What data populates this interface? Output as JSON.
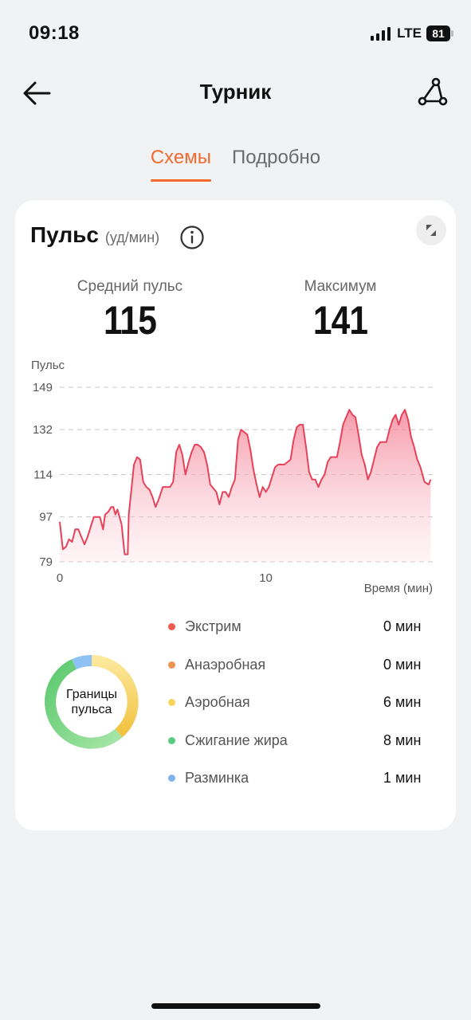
{
  "status": {
    "time": "09:18",
    "network": "LTE",
    "battery": "81"
  },
  "header": {
    "title": "Турник"
  },
  "tabs": [
    {
      "label": "Схемы",
      "active": true
    },
    {
      "label": "Подробно",
      "active": false
    }
  ],
  "card": {
    "title": "Пульс",
    "unit": "(уд/мин)",
    "stats": {
      "avg_label": "Средний пульс",
      "avg_value": "115",
      "max_label": "Максимум",
      "max_value": "141"
    }
  },
  "chart_data": {
    "type": "area",
    "ylabel": "Пульс",
    "xlabel": "Время (мин)",
    "yticks": [
      149,
      132,
      114,
      97,
      79
    ],
    "xticks": [
      0,
      10
    ],
    "ylim": [
      79,
      149
    ],
    "xlim": [
      0,
      18.1
    ],
    "grid": true,
    "color": "#e8425a",
    "series": [
      {
        "points": [
          [
            0.0,
            95
          ],
          [
            0.15,
            84
          ],
          [
            0.3,
            85
          ],
          [
            0.45,
            88
          ],
          [
            0.6,
            87
          ],
          [
            0.75,
            92
          ],
          [
            0.9,
            92
          ],
          [
            1.05,
            89
          ],
          [
            1.2,
            86
          ],
          [
            1.35,
            89
          ],
          [
            1.5,
            93
          ],
          [
            1.65,
            97
          ],
          [
            1.8,
            97
          ],
          [
            1.95,
            97
          ],
          [
            2.1,
            92
          ],
          [
            2.2,
            98
          ],
          [
            2.35,
            99
          ],
          [
            2.5,
            101
          ],
          [
            2.6,
            101
          ],
          [
            2.7,
            98
          ],
          [
            2.8,
            100
          ],
          [
            3.0,
            94
          ],
          [
            3.15,
            82
          ],
          [
            3.3,
            82
          ],
          [
            3.35,
            98
          ],
          [
            3.45,
            106
          ],
          [
            3.6,
            118
          ],
          [
            3.75,
            121
          ],
          [
            3.9,
            120
          ],
          [
            4.05,
            111
          ],
          [
            4.2,
            109
          ],
          [
            4.35,
            108
          ],
          [
            4.5,
            105
          ],
          [
            4.65,
            101
          ],
          [
            4.8,
            104
          ],
          [
            5.0,
            109
          ],
          [
            5.2,
            109
          ],
          [
            5.35,
            109
          ],
          [
            5.5,
            111
          ],
          [
            5.65,
            123
          ],
          [
            5.8,
            126
          ],
          [
            5.95,
            122
          ],
          [
            6.1,
            114
          ],
          [
            6.25,
            119
          ],
          [
            6.4,
            123
          ],
          [
            6.55,
            126
          ],
          [
            6.7,
            126
          ],
          [
            6.85,
            125
          ],
          [
            7.0,
            123
          ],
          [
            7.15,
            118
          ],
          [
            7.3,
            110
          ],
          [
            7.5,
            108
          ],
          [
            7.6,
            107
          ],
          [
            7.75,
            102
          ],
          [
            7.9,
            107
          ],
          [
            8.05,
            107
          ],
          [
            8.2,
            105
          ],
          [
            8.35,
            109
          ],
          [
            8.5,
            112
          ],
          [
            8.65,
            128
          ],
          [
            8.8,
            132
          ],
          [
            8.95,
            131
          ],
          [
            9.1,
            130
          ],
          [
            9.25,
            124
          ],
          [
            9.4,
            116
          ],
          [
            9.55,
            110
          ],
          [
            9.7,
            105
          ],
          [
            9.85,
            109
          ],
          [
            10.0,
            107
          ],
          [
            10.15,
            109
          ],
          [
            10.3,
            113
          ],
          [
            10.45,
            117
          ],
          [
            10.6,
            118
          ],
          [
            10.75,
            118
          ],
          [
            10.9,
            118
          ],
          [
            11.05,
            119
          ],
          [
            11.2,
            120
          ],
          [
            11.35,
            128
          ],
          [
            11.5,
            133
          ],
          [
            11.65,
            134
          ],
          [
            11.8,
            134
          ],
          [
            11.95,
            125
          ],
          [
            12.1,
            115
          ],
          [
            12.25,
            112
          ],
          [
            12.4,
            112
          ],
          [
            12.55,
            109
          ],
          [
            12.7,
            112
          ],
          [
            12.85,
            114
          ],
          [
            13.0,
            119
          ],
          [
            13.15,
            121
          ],
          [
            13.3,
            121
          ],
          [
            13.45,
            121
          ],
          [
            13.6,
            127
          ],
          [
            13.75,
            134
          ],
          [
            13.9,
            137
          ],
          [
            14.05,
            140
          ],
          [
            14.2,
            138
          ],
          [
            14.35,
            137
          ],
          [
            14.5,
            130
          ],
          [
            14.65,
            122
          ],
          [
            14.8,
            118
          ],
          [
            14.95,
            112
          ],
          [
            15.1,
            115
          ],
          [
            15.25,
            120
          ],
          [
            15.4,
            125
          ],
          [
            15.55,
            127
          ],
          [
            15.7,
            127
          ],
          [
            15.85,
            127
          ],
          [
            16.0,
            132
          ],
          [
            16.15,
            136
          ],
          [
            16.3,
            138
          ],
          [
            16.45,
            134
          ],
          [
            16.6,
            138
          ],
          [
            16.75,
            140
          ],
          [
            16.9,
            136
          ],
          [
            17.05,
            129
          ],
          [
            17.2,
            125
          ],
          [
            17.35,
            120
          ],
          [
            17.5,
            117
          ],
          [
            17.7,
            111
          ],
          [
            17.9,
            110
          ],
          [
            18.0,
            112
          ]
        ]
      }
    ]
  },
  "zones": {
    "center_label": "Границы пульса",
    "items": [
      {
        "name": "Экстрим",
        "value": "0 мин",
        "color": "#ee5a4e"
      },
      {
        "name": "Анаэробная",
        "value": "0 мин",
        "color": "#f0934f"
      },
      {
        "name": "Аэробная",
        "value": "6 мин",
        "color": "#f6d55c"
      },
      {
        "name": "Сжигание жира",
        "value": "8 мин",
        "color": "#5cc981"
      },
      {
        "name": "Разминка",
        "value": "1 мин",
        "color": "#7fb3f0"
      }
    ]
  }
}
